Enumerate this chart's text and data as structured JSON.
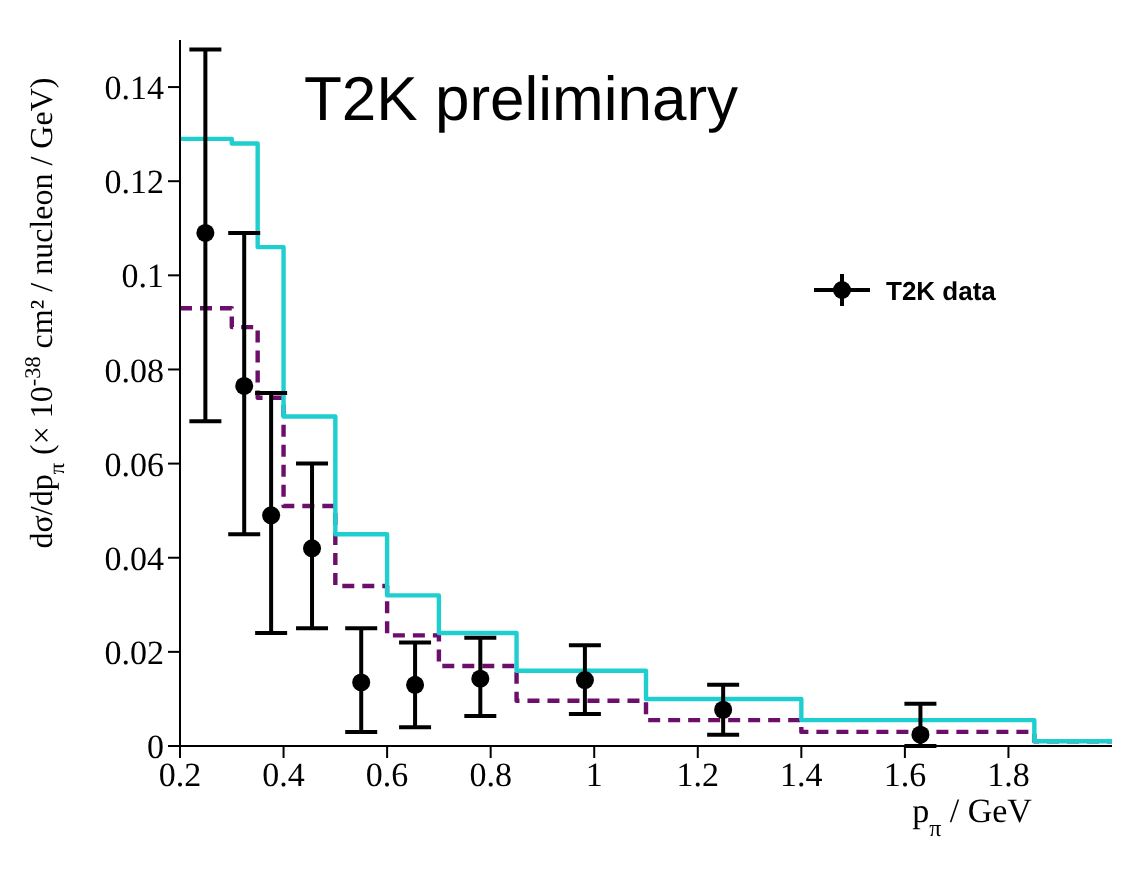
{
  "chart_data": {
    "type": "step",
    "xlabel": "p$_{π}$ / GeV",
    "ylabel": "dσ/dp$_{π}$ (× 10$^{-38}$ cm² / nucleon / GeV)",
    "annotations": [
      "T2K preliminary"
    ],
    "series": [
      {
        "type": "step",
        "color": "#6b0f6b",
        "line_style": "dashed",
        "x": [
          0.2,
          0.3,
          0.35,
          0.4,
          0.5,
          0.6,
          0.7,
          0.85,
          1.1,
          1.4,
          1.85,
          2.0
        ],
        "values": [
          0.093,
          0.089,
          0.074,
          0.051,
          0.034,
          0.0235,
          0.017,
          0.0096,
          0.0055,
          0.003,
          0.001,
          0.001
        ]
      },
      {
        "type": "step",
        "color": "#1fcfd0",
        "line_style": "solid",
        "x": [
          0.2,
          0.3,
          0.35,
          0.4,
          0.5,
          0.6,
          0.7,
          0.85,
          1.1,
          1.4,
          1.85,
          2.0
        ],
        "values": [
          0.129,
          0.128,
          0.106,
          0.07,
          0.045,
          0.032,
          0.024,
          0.016,
          0.01,
          0.0055,
          0.001,
          0.001
        ]
      },
      {
        "type": "scatter",
        "name": "T2K data",
        "color": "#000000",
        "marker": "circle",
        "x": [
          0.249,
          0.324,
          0.376,
          0.455,
          0.55,
          0.654,
          0.78,
          0.982,
          1.249,
          1.63
        ],
        "values": [
          0.109,
          0.0765,
          0.049,
          0.042,
          0.0135,
          0.013,
          0.0143,
          0.014,
          0.0077,
          0.0024
        ],
        "errors": [
          [
            0.069,
            0.148
          ],
          [
            0.045,
            0.109
          ],
          [
            0.024,
            0.075
          ],
          [
            0.025,
            0.06
          ],
          [
            0.003,
            0.025
          ],
          [
            0.004,
            0.022
          ],
          [
            0.0064,
            0.023
          ],
          [
            0.0068,
            0.0214
          ],
          [
            0.0024,
            0.013
          ],
          [
            0,
            0.009
          ]
        ]
      }
    ],
    "xlim": [
      0.2,
      2.0
    ],
    "xticks": [
      0.2,
      0.4,
      0.6,
      0.8,
      1,
      1.2,
      1.4,
      1.6,
      1.8
    ],
    "ylim": [
      0,
      0.15
    ],
    "yticks": [
      0,
      0.02,
      0.04,
      0.06,
      0.08,
      0.1,
      0.12,
      0.14
    ],
    "grid": false,
    "legend": "top right"
  }
}
